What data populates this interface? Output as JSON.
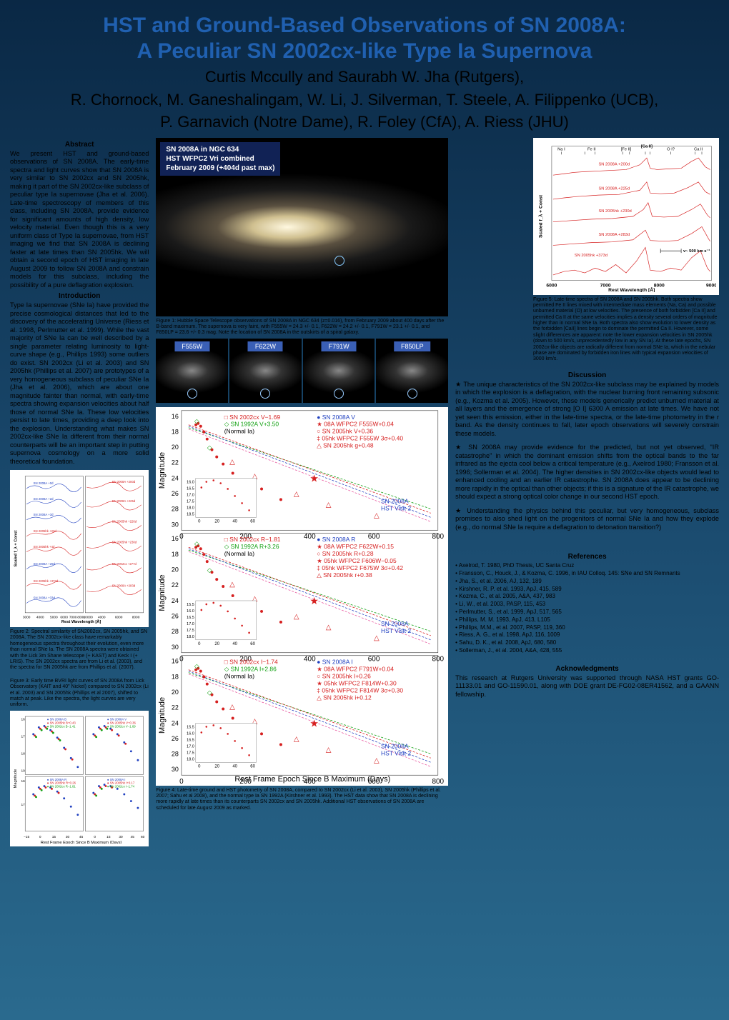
{
  "title": {
    "line1": "HST and Ground-Based Observations of SN 2008A:",
    "line2": "A Peculiar SN 2002cx-like Type Ia Supernova",
    "authors1": "Curtis Mccully and Saurabh W. Jha (Rutgers),",
    "authors2": "R. Chornock, M. Ganeshalingam, W. Li, J. Silverman, T. Steele, A. Filippenko (UCB),",
    "authors3": "P. Garnavich (Notre Dame), R. Foley (CfA), A. Riess (JHU)"
  },
  "abstract": {
    "head": "Abstract",
    "text": "We present HST and ground-based observations of SN 2008A. The early-time spectra and light curves show that SN 2008A is very similar to SN 2002cx and SN 2005hk, making it part of the SN 2002cx-like subclass of peculiar type Ia supernovae (Jha et al. 2006). Late-time spectroscopy of members of this class, including SN 2008A, provide evidence for significant amounts of high density, low velocity material. Even though this is a very uniform class of Type Ia supernovae, from HST imaging we find that SN 2008A is declining faster at late times than SN 2005hk. We will obtain a second epoch of HST imaging in late August 2009 to follow SN 2008A and constrain models for this subclass, including the possibility of a pure deflagration explosion."
  },
  "intro": {
    "head": "Introduction",
    "text": "Type Ia supernovae (SNe Ia) have provided the precise cosmological distances that led to the discovery of the accelerating Universe (Riess et al. 1998, Perlmutter et al. 1999). While the vast majority of SNe Ia can be well described by a single parameter relating luminosity to light-curve shape (e.g., Phillips 1993) some outliers do exist. SN 2002cx (Li et al. 2003) and SN 2005hk (Phillips et al. 2007) are prototypes of a very homogeneous subclass of peculiar SNe Ia (Jha et al. 2006), which are about one magnitude fainter than normal, with early-time spectra showing expansion velocities about half those of normal SNe Ia. These low velocities persist to late times, providing a deep look into the explosion. Understanding what makes SN 2002cx-like SNe Ia different from their normal counterparts will be an important step in putting supernova cosmology on a more solid theoretical foundation."
  },
  "galaxy_label": {
    "l1": "SN 2008A in NGC 634",
    "l2": "HST WFPC2 Vri combined",
    "l3": "February 2009 (+404d past max)"
  },
  "fig1_caption": "Figure 1: Hubble Space Telescope observations of SN 2008A in NGC 634 (z=0.016), from February 2009 about 400 days after the B-band maximum. The supernova is very faint, with F555W = 24.3 +/- 0.1, F622W = 24.2 +/- 0.1, F791W = 23.1 +/- 0.1, and F850LP = 23.6 +/- 0.3 mag. Note the location of SN 2008A in the outskirts of a spiral galaxy.",
  "filters": [
    "F555W",
    "F622W",
    "F791W",
    "F850LP"
  ],
  "fig2": {
    "labels": [
      "SN 2008A +200d",
      "SN 2008A +0d",
      "SN 2008A +225d",
      "SN 2008A +2d",
      "SN 2005hk +226d",
      "SN 2008A +3d",
      "SN 2005hk +23d",
      "SN 2005hk +230d",
      "SN 2005hk +4d",
      "SN 2002cx +277d",
      "SN 2008A +29d",
      "SN 2008A +283d",
      "SN 2005hk +373d",
      "SN 2008A +33d"
    ],
    "xlabel": "Rest Wavelength [Å]",
    "ylabel": "Scaled f_λ + Const",
    "xticks": [
      "3000",
      "4000",
      "5000",
      "6000",
      "7000",
      "8000",
      "10000",
      "4000",
      "6000",
      "8000"
    ],
    "caption": "Figure 2: Spectral similarity of SN2002cx, SN 2005hk, and SN 2008A. The SN 2002cx-like class have remarkably homogeneous spectra throughout their evolution, even more than normal SNe Ia. The SN 2008A spectra were obtained with the Lick 3m Shane telescope (+ KAST) and Keck I (+ LRIS). The SN 2002cx spectra are from Li et al. (2003), and the spectra for SN 2005hk are from Phillips et al. (2007).",
    "colors": {
      "red": "#d62020",
      "blue": "#2040c0",
      "axis": "#333"
    }
  },
  "fig3": {
    "caption": "Figure 3: Early time BVRI light curves of SN 2008A from Lick Observatory (KAIT and 40\" Nickel) compared to SN 2002cx (Li et al. 2003) and SN 2005hk (Phillips et al 2007), shifted to match at peak. Like the spectra, the light curves are very uniform.",
    "xlabel": "Rest Frame Epoch Since B Maximum (Days)",
    "ylabel": "Magnitude",
    "yticks_left": [
      "16",
      "17",
      "18",
      "19",
      "16",
      "17"
    ],
    "xticks": [
      "-15",
      "0",
      "15",
      "30",
      "45",
      "0",
      "15",
      "30",
      "45",
      "60"
    ],
    "legend_items": [
      {
        "label": "SN 2008A B",
        "color": "#2040c0"
      },
      {
        "label": "SN 2005hk B+0.43",
        "color": "#d62020"
      },
      {
        "label": "SN 2002cx B−1.41",
        "color": "#10a010"
      },
      {
        "label": "SN 2008A V",
        "color": "#2040c0"
      },
      {
        "label": "SN 2005hk V+0.36",
        "color": "#d62020"
      },
      {
        "label": "SN 2002cx V−1.69",
        "color": "#10a010"
      },
      {
        "label": "SN 2008A R",
        "color": "#2040c0"
      },
      {
        "label": "SN 2005hk R+0.26",
        "color": "#d62020"
      },
      {
        "label": "SN 2002cx R−1.81",
        "color": "#10a010"
      },
      {
        "label": "SN 2008A I",
        "color": "#2040c0"
      },
      {
        "label": "SN 2005hk I+0.17",
        "color": "#d62020"
      },
      {
        "label": "SN 2002cx I−1.74",
        "color": "#10a010"
      }
    ]
  },
  "fig4": {
    "xlabel": "Rest Frame Epoch Since B Maximum (Days)",
    "ylabel": "Magnitude",
    "xticks": [
      "0",
      "200",
      "400",
      "600",
      "800"
    ],
    "yticks": [
      "16",
      "18",
      "20",
      "22",
      "24",
      "26",
      "28",
      "30"
    ],
    "inset_yticks": [
      "16.0",
      "16.5",
      "17.0",
      "17.5",
      "18.0",
      "18.5"
    ],
    "inset_yticks2": [
      "15.5",
      "16.0",
      "16.5",
      "17.0",
      "17.5",
      "18.0"
    ],
    "inset_xticks": [
      "0",
      "20",
      "40",
      "60"
    ],
    "panels": [
      {
        "legend": [
          {
            "sym": "□",
            "col": "#d62020",
            "label": "SN 2002cx V−1.69"
          },
          {
            "sym": "◇",
            "col": "#10a010",
            "label": "SN 1992A V+3.50"
          },
          {
            "sym": "",
            "col": "#000",
            "label": "(Normal Ia)"
          },
          {
            "sym": "●",
            "col": "#2040c0",
            "label": "SN 2008A V"
          },
          {
            "sym": "★",
            "col": "#d62020",
            "label": "08A WFPC2 F555W+0.04"
          },
          {
            "sym": "○",
            "col": "#d62020",
            "label": "SN 2005hk V+0.36"
          },
          {
            "sym": "‡",
            "col": "#d62020",
            "label": "05hk WFPC2 F555W 3σ+0.40"
          },
          {
            "sym": "△",
            "col": "#d62020",
            "label": "SN 2005hk g+0.48"
          }
        ]
      },
      {
        "legend": [
          {
            "sym": "□",
            "col": "#d62020",
            "label": "SN 2002cx R−1.81"
          },
          {
            "sym": "◇",
            "col": "#10a010",
            "label": "SN 1992A R+3.26"
          },
          {
            "sym": "",
            "col": "#000",
            "label": "(Normal Ia)"
          },
          {
            "sym": "●",
            "col": "#2040c0",
            "label": "SN 2008A R"
          },
          {
            "sym": "★",
            "col": "#d62020",
            "label": "08A WFPC2 F622W+0.15"
          },
          {
            "sym": "○",
            "col": "#d62020",
            "label": "SN 2005hk R+0.28"
          },
          {
            "sym": "★",
            "col": "#d62020",
            "label": "05hk WFPC2 F606W−0.05"
          },
          {
            "sym": "‡",
            "col": "#d62020",
            "label": "05hk WFPC2 F675W 3σ+0.42"
          },
          {
            "sym": "△",
            "col": "#d62020",
            "label": "SN 2005hk r+0.38"
          }
        ]
      },
      {
        "legend": [
          {
            "sym": "□",
            "col": "#d62020",
            "label": "SN 2002cx I−1.74"
          },
          {
            "sym": "◇",
            "col": "#10a010",
            "label": "SN 1992A I+2.86"
          },
          {
            "sym": "",
            "col": "#000",
            "label": "(Normal Ia)"
          },
          {
            "sym": "●",
            "col": "#2040c0",
            "label": "SN 2008A I"
          },
          {
            "sym": "★",
            "col": "#d62020",
            "label": "08A WFPC2 F791W+0.04"
          },
          {
            "sym": "○",
            "col": "#d62020",
            "label": "SN 2005hk I+0.26"
          },
          {
            "sym": "★",
            "col": "#d62020",
            "label": "05hk WFPC2 F814W+0.30"
          },
          {
            "sym": "‡",
            "col": "#d62020",
            "label": "05hk WFPC2 F814W 3σ+0.30"
          },
          {
            "sym": "△",
            "col": "#d62020",
            "label": "SN 2005hk i+0.12"
          }
        ]
      }
    ],
    "annotation1": "SN 2008A",
    "annotation2": "HST Visit 2",
    "caption": "Figure 4: Late-time ground and HST photometry of SN 2008A, compared to SN 2002cx (Li et al. 2003), SN 2005hk (Phillips et al. 2007; Sahu et al 2008), and the normal type Ia SN 1992A (Kirshner et al. 1993). The HST data show that SN 2008A is declining more rapidly at late times than its counterparts SN 2002cx and SN 2005hk. Additional HST observations of SN 2008A are scheduled for late August 2009 as marked."
  },
  "fig5": {
    "xlabel": "Rest Wavelength [Å]",
    "ylabel": "Scaled f_λ + Const",
    "xticks": [
      "6000",
      "7000",
      "8000",
      "9000"
    ],
    "top_labels": [
      "Na I",
      "Fe II",
      "[Fe II]",
      "[Ca II]",
      "O I?",
      "Ca II"
    ],
    "series": [
      {
        "label": "SN 2008A +200d",
        "color": "#d62020"
      },
      {
        "label": "SN 2008A +225d",
        "color": "#d62020"
      },
      {
        "label": "SN 2005hk +230d",
        "color": "#d62020"
      },
      {
        "label": "SN 2008A +283d",
        "color": "#d62020"
      },
      {
        "label": "SN 2005hk +373d",
        "color": "#d62020"
      }
    ],
    "vel_label": "v~ 500 km s⁻¹",
    "caption": "Figure 5: Late-time spectra of SN 2008A and SN 2005hk. Both spectra show permitted Fe II lines mixed with intermediate mass elements (Na, Ca) and possible unburned material (O) at low velocities. The presence of both forbidden [Ca II] and permitted Ca II at the same velocities implies a density several orders of magnitude higher than in normal SNe Ia. Both spectra also show evolution to lower density as the forbidden [CaII] lines begin to dominate the permitted Ca II. However, some slight differences are apparent: note the lower expansion velocities in SN 2005hk (down to 500 km/s, unprecedentedly low in any SN Ia). At these late epochs, SN 2002cx-like objects are radically different from normal SNe Ia, which in the nebular phase are dominated by forbidden iron lines with typical expansion velocities of 3000 km/s."
  },
  "discussion": {
    "head": "Discussion",
    "p1": "The unique characteristics of the SN 2002cx-like subclass may be explained by models in which the explosion is a deflagration, with the nuclear burning front remaining subsonic (e.g., Kozma et al. 2005). However, these models generically predict unburned material at all layers and the emergence of strong [O I] 6300 A emission at late times. We have not yet seen this emission, either in the late-time spectra, or the late-time photometry in the r band. As the density continues to fall, later epoch observations will severely constrain these models.",
    "p2": "SN 2008A may provide evidence for the predicted, but not yet observed, \"IR catastrophe\" in which the dominant emission shifts from the optical bands to the far infrared as the ejecta cool below a critical temperature (e.g., Axelrod 1980; Fransson et al. 1996; Sollerman et al. 2004). The higher densities in SN 2002cx-like objects would lead to enhanced cooling and an earlier IR catastrophe. SN 2008A does appear to be declining more rapidly in the optical than other objects; if this is a signature of the IR catastrophe, we should expect a strong optical color change in our second HST epoch.",
    "p3": "Understanding the physics behind this peculiar, but very homogeneous, subclass promises to also shed light on the progenitors of normal SNe Ia and how they explode (e.g., do normal SNe Ia require a deflagration to detonation transition?)"
  },
  "references": {
    "head": "References",
    "items": [
      "Axelrod, T. 1980, PhD Thesis, UC Santa Cruz",
      "Fransson, C., Houck, J., & Kozma, C. 1996, in IAU Colloq. 145: SNe and SN Remnants",
      "Jha, S., et al. 2006, AJ, 132, 189",
      "Kirshner, R. P. et al. 1993, ApJ, 415, 589",
      "Kozma, C., et al. 2005, A&A, 437, 983",
      "Li, W., et al. 2003, PASP, 115, 453",
      "Perlmutter, S., et al. 1999, ApJ, 517, 565",
      "Phillips, M. M. 1993, ApJ, 413, L105",
      "Phillips, M.M., et al. 2007, PASP, 119, 360",
      "Riess, A. G., et al. 1998, ApJ, 116, 1009",
      "Sahu, D. K., et al. 2008, ApJ, 680, 580",
      "Sollerman, J., et al. 2004, A&A, 428, 555"
    ]
  },
  "ack": {
    "head": "Acknowledgments",
    "text": "This research at Rutgers University was supported through NASA HST grants GO-11133.01 and GO-11590.01, along with DOE grant DE-FG02-08ER41562, and a GAANN fellowship."
  }
}
